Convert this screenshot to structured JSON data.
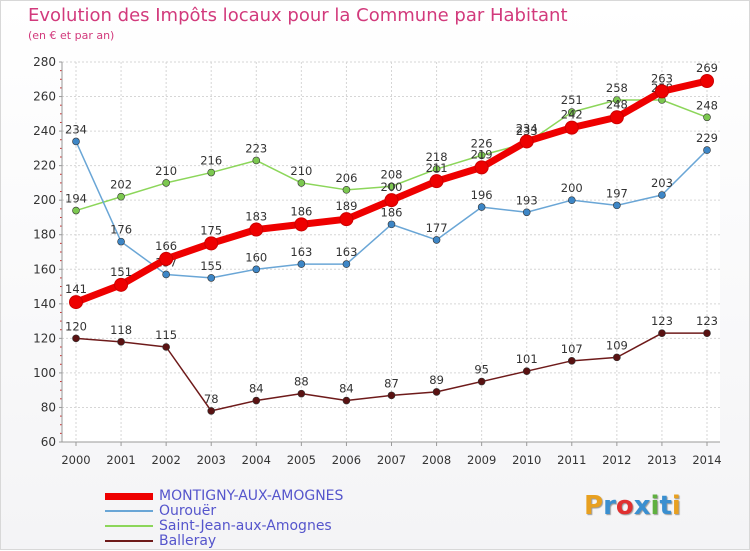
{
  "title": "Evolution des Impôts locaux pour la Commune par Habitant",
  "subtitle": "(en € et par an)",
  "logo": {
    "text": "Proxiti",
    "colors": [
      "#e8a020",
      "#3a8fd0",
      "#e03030",
      "#3a8fd0",
      "#60b040",
      "#3a8fd0",
      "#e8a020"
    ]
  },
  "chart_data": {
    "type": "line",
    "x": [
      2000,
      2001,
      2002,
      2003,
      2004,
      2005,
      2006,
      2007,
      2008,
      2009,
      2010,
      2011,
      2012,
      2013,
      2014
    ],
    "x_tick_labels": [
      "2000",
      "2001",
      "2002",
      "2003",
      "2004",
      "2005",
      "2006",
      "2007",
      "2008",
      "2009",
      "2010",
      "2011",
      "2012",
      "2013",
      "2014"
    ],
    "ylim": [
      60,
      280
    ],
    "y_ticks": [
      60,
      80,
      100,
      120,
      140,
      160,
      180,
      200,
      220,
      240,
      260,
      280
    ],
    "y_tick_labels": [
      "60",
      "80",
      "100",
      "120",
      "140",
      "160",
      "180",
      "200",
      "220",
      "240",
      "260",
      "280"
    ],
    "grid": true,
    "legend_position": "bottom-left",
    "series": [
      {
        "name": "Saint-Jean-aux-Amognes",
        "color": "#8cd65a",
        "marker": "#7cc850",
        "values": [
          194,
          202,
          210,
          216,
          223,
          210,
          206,
          208,
          218,
          226,
          233,
          251,
          258,
          258,
          248
        ],
        "labels": [
          "194",
          "202",
          "210",
          "216",
          "223",
          "210",
          "206",
          "208",
          "218",
          "226",
          "233",
          "251",
          "258",
          "258",
          "248"
        ]
      },
      {
        "name": "Ourouër",
        "color": "#6aa6d6",
        "marker": "#3d86c6",
        "values": [
          234,
          176,
          157,
          155,
          160,
          163,
          163,
          186,
          177,
          196,
          193,
          200,
          197,
          203,
          229
        ],
        "labels": [
          "234",
          "176",
          "157",
          "155",
          "160",
          "163",
          "163",
          "186",
          "177",
          "196",
          "193",
          "200",
          "197",
          "203",
          "229"
        ]
      },
      {
        "name": "Balleray",
        "color": "#6e1a1a",
        "marker": "#5a1212",
        "values": [
          120,
          118,
          115,
          78,
          84,
          88,
          84,
          87,
          89,
          95,
          101,
          107,
          109,
          123,
          123
        ],
        "labels": [
          "120",
          "118",
          "115",
          "78",
          "84",
          "88",
          "84",
          "87",
          "89",
          "95",
          "101",
          "107",
          "109",
          "123",
          "123"
        ]
      },
      {
        "name": "MONTIGNY-AUX-AMOGNES",
        "color": "#ee0000",
        "marker": "#ee0000",
        "values": [
          141,
          151,
          166,
          175,
          183,
          186,
          189,
          200,
          211,
          219,
          234,
          242,
          248,
          263,
          269
        ],
        "labels": [
          "141",
          "151",
          "166",
          "175",
          "183",
          "186",
          "189",
          "200",
          "211",
          "219",
          "234",
          "242",
          "248",
          "263",
          "269"
        ]
      }
    ]
  },
  "legend": [
    {
      "label": "MONTIGNY-AUX-AMOGNES",
      "color": "#ee0000",
      "text_color": "#5555cc"
    },
    {
      "label": "Ourouër",
      "color": "#6aa6d6",
      "text_color": "#5555cc"
    },
    {
      "label": "Saint-Jean-aux-Amognes",
      "color": "#8cd65a",
      "text_color": "#5555cc"
    },
    {
      "label": "Balleray",
      "color": "#6e1a1a",
      "text_color": "#5555cc"
    }
  ]
}
